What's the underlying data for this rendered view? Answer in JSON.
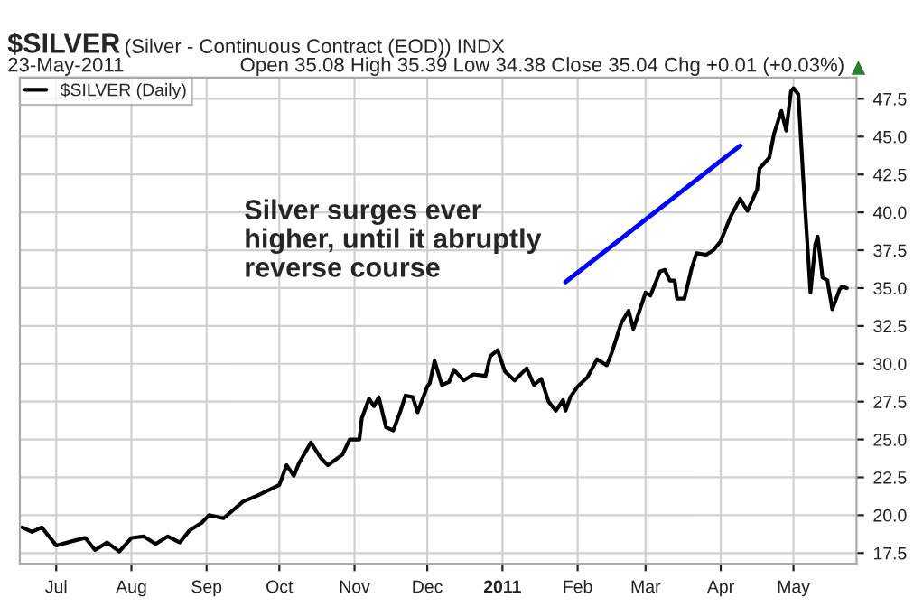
{
  "chart_data": {
    "type": "line",
    "title": "$SILVER (Silver - Continuous Contract (EOD)) INDX",
    "subtitle": "23-May-2011",
    "annotations": [
      "Open 35.08 High 35.39 Low 34.38 Close 35.04 Chg +0.01 (+0.03%)",
      "Silver surges ever\nhigher, until it abruptly\nreverse course"
    ],
    "series": [
      {
        "name": "$SILVER (Daily)",
        "color": "#000000",
        "x": [
          "2010-06-17",
          "2010-06-21",
          "2010-06-25",
          "2010-07-01",
          "2010-07-08",
          "2010-07-13",
          "2010-07-17",
          "2010-07-22",
          "2010-07-27",
          "2010-08-01",
          "2010-08-06",
          "2010-08-11",
          "2010-08-16",
          "2010-08-21",
          "2010-08-25",
          "2010-08-30",
          "2010-09-02",
          "2010-09-08",
          "2010-09-16",
          "2010-09-22",
          "2010-10-01",
          "2010-10-04",
          "2010-10-07",
          "2010-10-09",
          "2010-10-14",
          "2010-10-18",
          "2010-10-21",
          "2010-10-27",
          "2010-10-30",
          "2010-11-03",
          "2010-11-04",
          "2010-11-07",
          "2010-11-09",
          "2010-11-11",
          "2010-11-14",
          "2010-11-17",
          "2010-11-20",
          "2010-11-22",
          "2010-11-25",
          "2010-11-27",
          "2010-12-01",
          "2010-12-02",
          "2010-12-04",
          "2010-12-07",
          "2010-12-10",
          "2010-12-12",
          "2010-12-16",
          "2010-12-20",
          "2010-12-25",
          "2010-12-27",
          "2010-12-30",
          "2011-01-02",
          "2011-01-06",
          "2011-01-11",
          "2011-01-14",
          "2011-01-17",
          "2011-01-20",
          "2011-01-23",
          "2011-01-26",
          "2011-01-27",
          "2011-01-29",
          "2011-02-01",
          "2011-02-05",
          "2011-02-09",
          "2011-02-13",
          "2011-02-15",
          "2011-02-19",
          "2011-02-22",
          "2011-02-24",
          "2011-03-01",
          "2011-03-03",
          "2011-03-07",
          "2011-03-09",
          "2011-03-11",
          "2011-03-13",
          "2011-03-14",
          "2011-03-17",
          "2011-03-20",
          "2011-03-22",
          "2011-03-26",
          "2011-03-29",
          "2011-04-01",
          "2011-04-05",
          "2011-04-09",
          "2011-04-12",
          "2011-04-16",
          "2011-04-17",
          "2011-04-21",
          "2011-04-23",
          "2011-04-26",
          "2011-04-28",
          "2011-04-30",
          "2011-05-01",
          "2011-05-03",
          "2011-05-05",
          "2011-05-08",
          "2011-05-10",
          "2011-05-11",
          "2011-05-13",
          "2011-05-15",
          "2011-05-17",
          "2011-05-20",
          "2011-05-21",
          "2011-05-23"
        ],
        "values": [
          19.2,
          18.9,
          19.2,
          18.0,
          18.3,
          18.5,
          17.7,
          18.2,
          17.6,
          18.5,
          18.6,
          18.1,
          18.6,
          18.2,
          19.0,
          19.5,
          20.0,
          19.8,
          20.9,
          21.3,
          22.0,
          23.3,
          22.6,
          23.4,
          24.8,
          23.8,
          23.3,
          24.0,
          25.0,
          25.0,
          26.4,
          27.7,
          27.2,
          27.8,
          25.8,
          25.6,
          26.9,
          27.9,
          27.8,
          26.8,
          28.5,
          28.7,
          30.2,
          28.6,
          28.8,
          29.6,
          28.9,
          29.3,
          29.2,
          30.5,
          30.9,
          29.5,
          28.9,
          29.7,
          28.6,
          29.0,
          27.5,
          26.9,
          27.6,
          26.9,
          27.8,
          28.5,
          29.1,
          30.3,
          29.9,
          30.7,
          32.7,
          33.5,
          32.3,
          34.7,
          34.5,
          36.1,
          36.2,
          35.5,
          35.5,
          34.3,
          34.3,
          36.3,
          37.3,
          37.2,
          37.5,
          38.1,
          39.7,
          40.9,
          40.1,
          41.5,
          42.9,
          43.6,
          45.2,
          46.7,
          45.4,
          48.0,
          48.2,
          47.8,
          42.3,
          34.7,
          37.9,
          38.4,
          35.7,
          35.5,
          33.6,
          34.9,
          35.1,
          35.0
        ]
      },
      {
        "type": "line",
        "color": "#0000ff",
        "x": [
          "2011-01-27",
          "2011-04-09"
        ],
        "values": [
          35.4,
          44.4
        ]
      }
    ],
    "xlim": [
      "2010-06-16",
      "2011-05-27"
    ],
    "xticks": [
      {
        "value": "2010-07-01",
        "label": "Jul"
      },
      {
        "value": "2010-08-01",
        "label": "Aug"
      },
      {
        "value": "2010-09-01",
        "label": "Sep"
      },
      {
        "value": "2010-10-01",
        "label": "Oct"
      },
      {
        "value": "2010-11-01",
        "label": "Nov"
      },
      {
        "value": "2010-12-01",
        "label": "Dec"
      },
      {
        "value": "2011-01-01",
        "label": "2011"
      },
      {
        "value": "2011-02-01",
        "label": "Feb"
      },
      {
        "value": "2011-03-01",
        "label": "Mar"
      },
      {
        "value": "2011-04-01",
        "label": "Apr"
      },
      {
        "value": "2011-05-01",
        "label": "May"
      }
    ],
    "ylim": [
      16.8,
      48.9
    ],
    "yticks": [
      17.5,
      {
        "value": 20,
        "label": "20.0"
      },
      22.5,
      {
        "value": 25,
        "label": "25.0"
      },
      27.5,
      {
        "value": 30,
        "label": "30.0"
      },
      32.5,
      {
        "value": 35,
        "label": "35.0"
      },
      37.5,
      {
        "value": 40,
        "label": "40.0"
      },
      42.5,
      {
        "value": 45,
        "label": "45.0"
      },
      47.5
    ],
    "grid": true,
    "legend": "top left",
    "marker": "none",
    "line_style": "solid"
  }
}
